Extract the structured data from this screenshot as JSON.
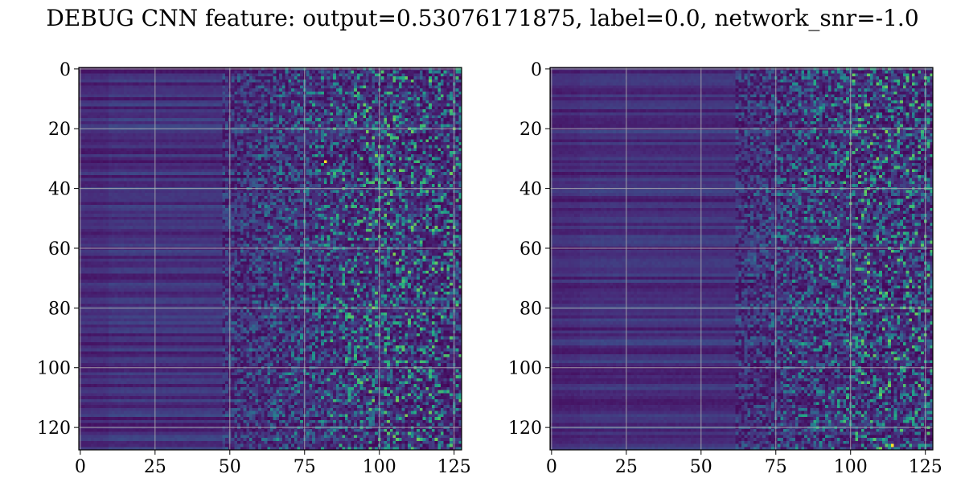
{
  "title": "DEBUG CNN feature: output=0.53076171875, label=0.0, network_snr=-1.0",
  "chart_data": [
    {
      "type": "heatmap",
      "panel": "left",
      "colormap": "viridis",
      "shape": [
        128,
        128
      ],
      "xlim": [
        -0.5,
        127.5
      ],
      "ylim": [
        127.5,
        -0.5
      ],
      "xticks": [
        0,
        25,
        50,
        75,
        100,
        125
      ],
      "yticks": [
        0,
        20,
        40,
        60,
        80,
        100,
        120
      ],
      "grid": true,
      "value_range": [
        0,
        1
      ],
      "description": "Dark flat bands on columns 0-50 (horizontal striping by row), rising speckled noise from ~50 to 127",
      "hotspots": [
        [
          82,
          31
        ],
        [
          112,
          65
        ],
        [
          100,
          47
        ],
        [
          110,
          109
        ],
        [
          84,
          91
        ]
      ]
    },
    {
      "type": "heatmap",
      "panel": "right",
      "colormap": "viridis",
      "shape": [
        128,
        128
      ],
      "xlim": [
        -0.5,
        127.5
      ],
      "ylim": [
        127.5,
        -0.5
      ],
      "xticks": [
        0,
        25,
        50,
        75,
        100,
        125
      ],
      "yticks": [
        0,
        20,
        40,
        60,
        80,
        100,
        120
      ],
      "grid": true,
      "value_range": [
        0,
        1
      ],
      "description": "Horizontal striping on columns 0-50, speckled noise on columns 70-127",
      "hotspots": [
        [
          114,
          126
        ],
        [
          85,
          35
        ],
        [
          105,
          21
        ],
        [
          125,
          51
        ],
        [
          80,
          95
        ]
      ]
    }
  ],
  "colors": {
    "dark": "#440154",
    "mid": "#3b528b",
    "teal": "#21918c",
    "green": "#5ec962",
    "yellow": "#fde725",
    "grid": "#b0b0b0"
  }
}
